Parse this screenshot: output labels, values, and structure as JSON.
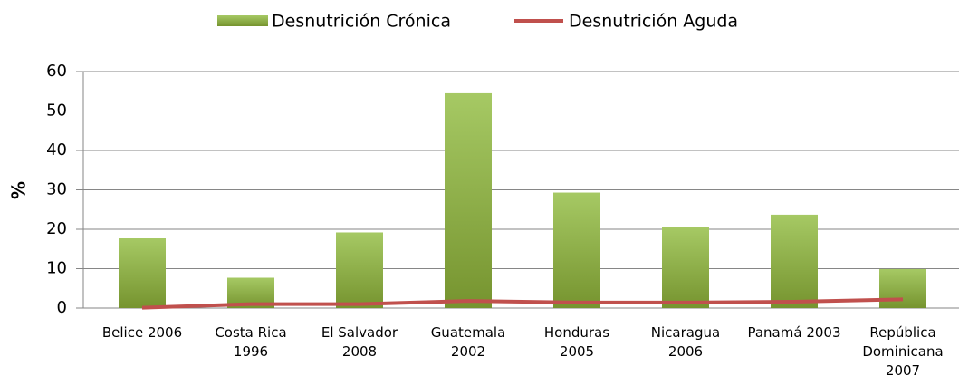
{
  "chart_data": {
    "type": "bar_line",
    "categories": [
      "Belice 2006",
      "Costa Rica 1996",
      "El Salvador 2008",
      "Guatemala 2002",
      "Honduras 2005",
      "Nicaragua 2006",
      "Panamá 2003",
      "República Dominicana 2007"
    ],
    "series": [
      {
        "name": "Desnutrición Crónica",
        "type": "bar",
        "color": "#9bbb59",
        "values": [
          17.7,
          7.7,
          19.2,
          54.5,
          29.3,
          20.5,
          23.7,
          9.9
        ]
      },
      {
        "name": "Desnutrición Aguda",
        "type": "line",
        "color": "#c0504d",
        "values": [
          0.1,
          1.0,
          1.0,
          1.8,
          1.4,
          1.4,
          1.6,
          2.2
        ]
      }
    ],
    "y_label": "%",
    "ylim": [
      0,
      60
    ],
    "yticks": [
      0,
      10,
      20,
      30,
      40,
      50,
      60
    ],
    "grid": true,
    "legend": "top"
  }
}
